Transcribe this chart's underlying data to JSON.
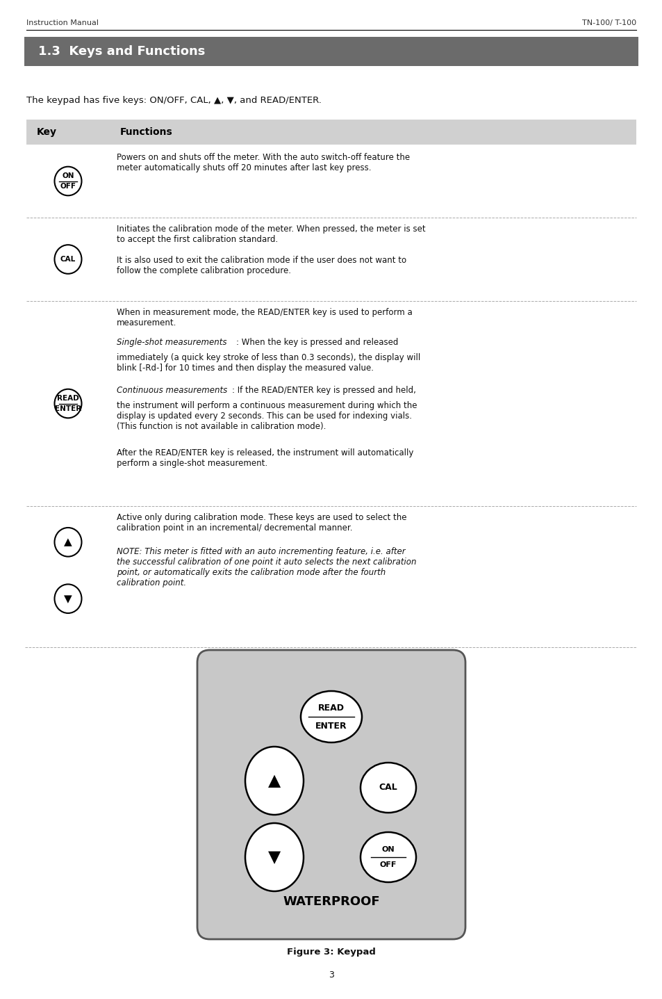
{
  "page_width": 9.54,
  "page_height": 14.37,
  "bg_color": "#ffffff",
  "header_left": "Instruction Manual",
  "header_right": "TN-100/ T-100",
  "section_title": "1.3  Keys and Functions",
  "section_bg": "#6b6b6b",
  "section_fg": "#ffffff",
  "intro_text": "The keypad has five keys: ON/OFF, CAL, ▲, ▼, and READ/ENTER.",
  "table_header_bg": "#d0d0d0",
  "table_header_key": "Key",
  "table_header_func": "Functions",
  "page_number": "3",
  "keypad_bg": "#c8c8c8",
  "waterproof_text": "WATERPROOF",
  "figure_caption": "Figure 3: Keypad"
}
